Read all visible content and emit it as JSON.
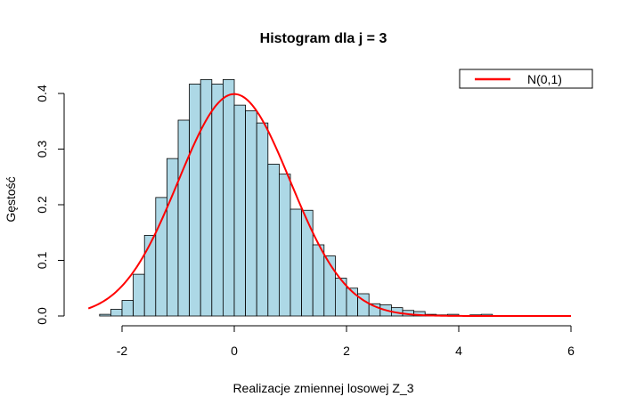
{
  "chart_data": {
    "type": "histogram",
    "title": "Histogram dla j = 3",
    "xlabel": "Realizacje zmiennej losowej Z_3",
    "ylabel": "Gęstość",
    "xlim": [
      -2.9,
      6.2
    ],
    "ylim": [
      0,
      0.43
    ],
    "x_ticks": [
      -2,
      0,
      2,
      4,
      6
    ],
    "x_tick_labels": [
      "-2",
      "0",
      "2",
      "4",
      "6"
    ],
    "y_ticks": [
      0.0,
      0.1,
      0.2,
      0.3,
      0.4
    ],
    "y_tick_labels": [
      "0.0",
      "0.1",
      "0.2",
      "0.3",
      "0.4"
    ],
    "bin_width": 0.2,
    "bars_color": "#add8e6",
    "bars": [
      {
        "x0": -2.4,
        "x1": -2.2,
        "density": 0.003
      },
      {
        "x0": -2.2,
        "x1": -2.0,
        "density": 0.012
      },
      {
        "x0": -2.0,
        "x1": -1.8,
        "density": 0.028
      },
      {
        "x0": -1.8,
        "x1": -1.6,
        "density": 0.075
      },
      {
        "x0": -1.6,
        "x1": -1.4,
        "density": 0.145
      },
      {
        "x0": -1.4,
        "x1": -1.2,
        "density": 0.213
      },
      {
        "x0": -1.2,
        "x1": -1.0,
        "density": 0.283
      },
      {
        "x0": -1.0,
        "x1": -0.8,
        "density": 0.352
      },
      {
        "x0": -0.8,
        "x1": -0.6,
        "density": 0.417
      },
      {
        "x0": -0.6,
        "x1": -0.4,
        "density": 0.425
      },
      {
        "x0": -0.4,
        "x1": -0.2,
        "density": 0.417
      },
      {
        "x0": -0.2,
        "x1": 0.0,
        "density": 0.425
      },
      {
        "x0": 0.0,
        "x1": 0.2,
        "density": 0.379
      },
      {
        "x0": 0.2,
        "x1": 0.4,
        "density": 0.369
      },
      {
        "x0": 0.4,
        "x1": 0.6,
        "density": 0.347
      },
      {
        "x0": 0.6,
        "x1": 0.8,
        "density": 0.273
      },
      {
        "x0": 0.8,
        "x1": 1.0,
        "density": 0.255
      },
      {
        "x0": 1.0,
        "x1": 1.2,
        "density": 0.192
      },
      {
        "x0": 1.2,
        "x1": 1.4,
        "density": 0.19
      },
      {
        "x0": 1.4,
        "x1": 1.6,
        "density": 0.128
      },
      {
        "x0": 1.6,
        "x1": 1.8,
        "density": 0.108
      },
      {
        "x0": 1.8,
        "x1": 2.0,
        "density": 0.068
      },
      {
        "x0": 2.0,
        "x1": 2.2,
        "density": 0.05
      },
      {
        "x0": 2.2,
        "x1": 2.4,
        "density": 0.04
      },
      {
        "x0": 2.4,
        "x1": 2.6,
        "density": 0.022
      },
      {
        "x0": 2.6,
        "x1": 2.8,
        "density": 0.02
      },
      {
        "x0": 2.8,
        "x1": 3.0,
        "density": 0.015
      },
      {
        "x0": 3.0,
        "x1": 3.2,
        "density": 0.01
      },
      {
        "x0": 3.2,
        "x1": 3.4,
        "density": 0.008
      },
      {
        "x0": 3.4,
        "x1": 3.6,
        "density": 0.003
      },
      {
        "x0": 3.6,
        "x1": 3.8,
        "density": 0.002
      },
      {
        "x0": 3.8,
        "x1": 4.0,
        "density": 0.003
      },
      {
        "x0": 4.0,
        "x1": 4.2,
        "density": 0.0
      },
      {
        "x0": 4.2,
        "x1": 4.4,
        "density": 0.002
      },
      {
        "x0": 4.4,
        "x1": 4.6,
        "density": 0.003
      }
    ],
    "series": [
      {
        "name": "N(0,1)",
        "type": "line",
        "color": "#ff0000",
        "function": "standard normal density",
        "x_range": [
          -2.6,
          6.0
        ]
      }
    ],
    "legend": {
      "position": "top-right",
      "entries": [
        {
          "label": "N(0,1)",
          "color": "#ff0000"
        }
      ]
    },
    "grid": false
  }
}
